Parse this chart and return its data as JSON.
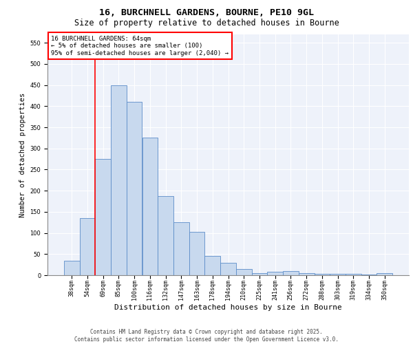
{
  "title_line1": "16, BURCHNELL GARDENS, BOURNE, PE10 9GL",
  "title_line2": "Size of property relative to detached houses in Bourne",
  "xlabel": "Distribution of detached houses by size in Bourne",
  "ylabel": "Number of detached properties",
  "categories": [
    "38sqm",
    "54sqm",
    "69sqm",
    "85sqm",
    "100sqm",
    "116sqm",
    "132sqm",
    "147sqm",
    "163sqm",
    "178sqm",
    "194sqm",
    "210sqm",
    "225sqm",
    "241sqm",
    "256sqm",
    "272sqm",
    "288sqm",
    "303sqm",
    "319sqm",
    "334sqm",
    "350sqm"
  ],
  "values": [
    35,
    135,
    275,
    450,
    410,
    325,
    188,
    125,
    103,
    46,
    30,
    15,
    5,
    8,
    10,
    5,
    4,
    3,
    3,
    2,
    5
  ],
  "bar_color": "#c8d9ee",
  "bar_edge_color": "#5b8cc8",
  "background_color": "#eef2fa",
  "grid_color": "#ffffff",
  "ylim": [
    0,
    570
  ],
  "yticks": [
    0,
    50,
    100,
    150,
    200,
    250,
    300,
    350,
    400,
    450,
    500,
    550
  ],
  "red_line_x": 1.5,
  "annotation_text": "16 BURCHNELL GARDENS: 64sqm\n← 5% of detached houses are smaller (100)\n95% of semi-detached houses are larger (2,040) →",
  "footer_text": "Contains HM Land Registry data © Crown copyright and database right 2025.\nContains public sector information licensed under the Open Government Licence v3.0.",
  "title_fontsize": 9.5,
  "subtitle_fontsize": 8.5,
  "tick_fontsize": 6,
  "xlabel_fontsize": 8,
  "ylabel_fontsize": 7.5,
  "annotation_fontsize": 6.5,
  "footer_fontsize": 5.5
}
